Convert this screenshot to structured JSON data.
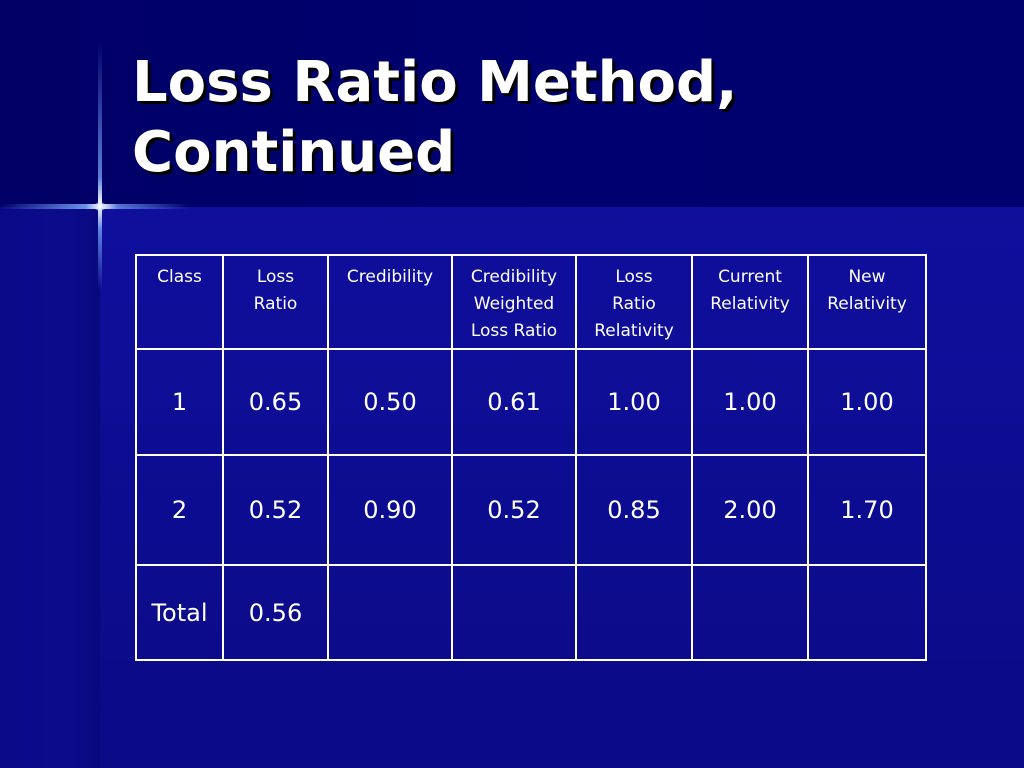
{
  "slide": {
    "title_lines": [
      "Loss Ratio Method,",
      "Continued"
    ]
  },
  "table": {
    "headers": [
      [
        "Class"
      ],
      [
        "Loss",
        "Ratio"
      ],
      [
        "Credibility"
      ],
      [
        "Credibility",
        "Weighted",
        "Loss Ratio"
      ],
      [
        "Loss",
        "Ratio",
        "Relativity"
      ],
      [
        "Current",
        "Relativity"
      ],
      [
        "New",
        "Relativity"
      ]
    ],
    "rows": [
      [
        "1",
        "0.65",
        "0.50",
        "0.61",
        "1.00",
        "1.00",
        "1.00"
      ],
      [
        "2",
        "0.52",
        "0.90",
        "0.52",
        "0.85",
        "2.00",
        "1.70"
      ],
      [
        "Total",
        "0.56",
        "",
        "",
        "",
        "",
        ""
      ]
    ]
  },
  "colors": {
    "background": "#0f0f9a",
    "header_band": "#000070",
    "text": "#ffffff"
  }
}
